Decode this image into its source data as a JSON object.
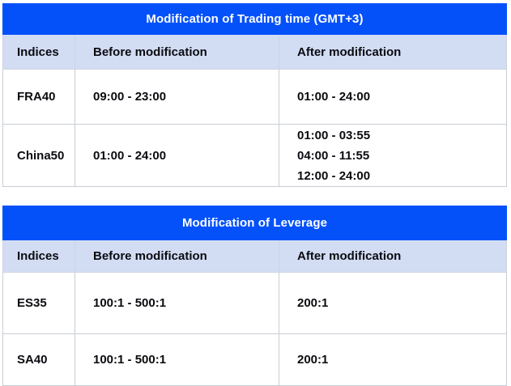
{
  "colors": {
    "title_bg": "#0451fa",
    "title_text": "#ffffff",
    "header_bg": "#d2ddf4",
    "cell_text": "#0b0b10",
    "border": "#c9cdd4"
  },
  "tables": [
    {
      "title": "Modification of Trading time (GMT+3)",
      "columns": [
        "Indices",
        "Before modification",
        "After modification"
      ],
      "rows": [
        {
          "index": "FRA40",
          "before": "09:00 - 23:00",
          "after": "01:00 - 24:00"
        },
        {
          "index": "China50",
          "before": "01:00 - 24:00",
          "after": "01:00 - 03:55\n04:00 - 11:55\n12:00 - 24:00"
        }
      ]
    },
    {
      "title": "Modification of Leverage",
      "columns": [
        "Indices",
        "Before modification",
        "After modification"
      ],
      "rows": [
        {
          "index": "ES35",
          "before": "100:1 - 500:1",
          "after": "200:1"
        },
        {
          "index": "SA40",
          "before": "100:1 - 500:1",
          "after": "200:1"
        }
      ]
    }
  ]
}
